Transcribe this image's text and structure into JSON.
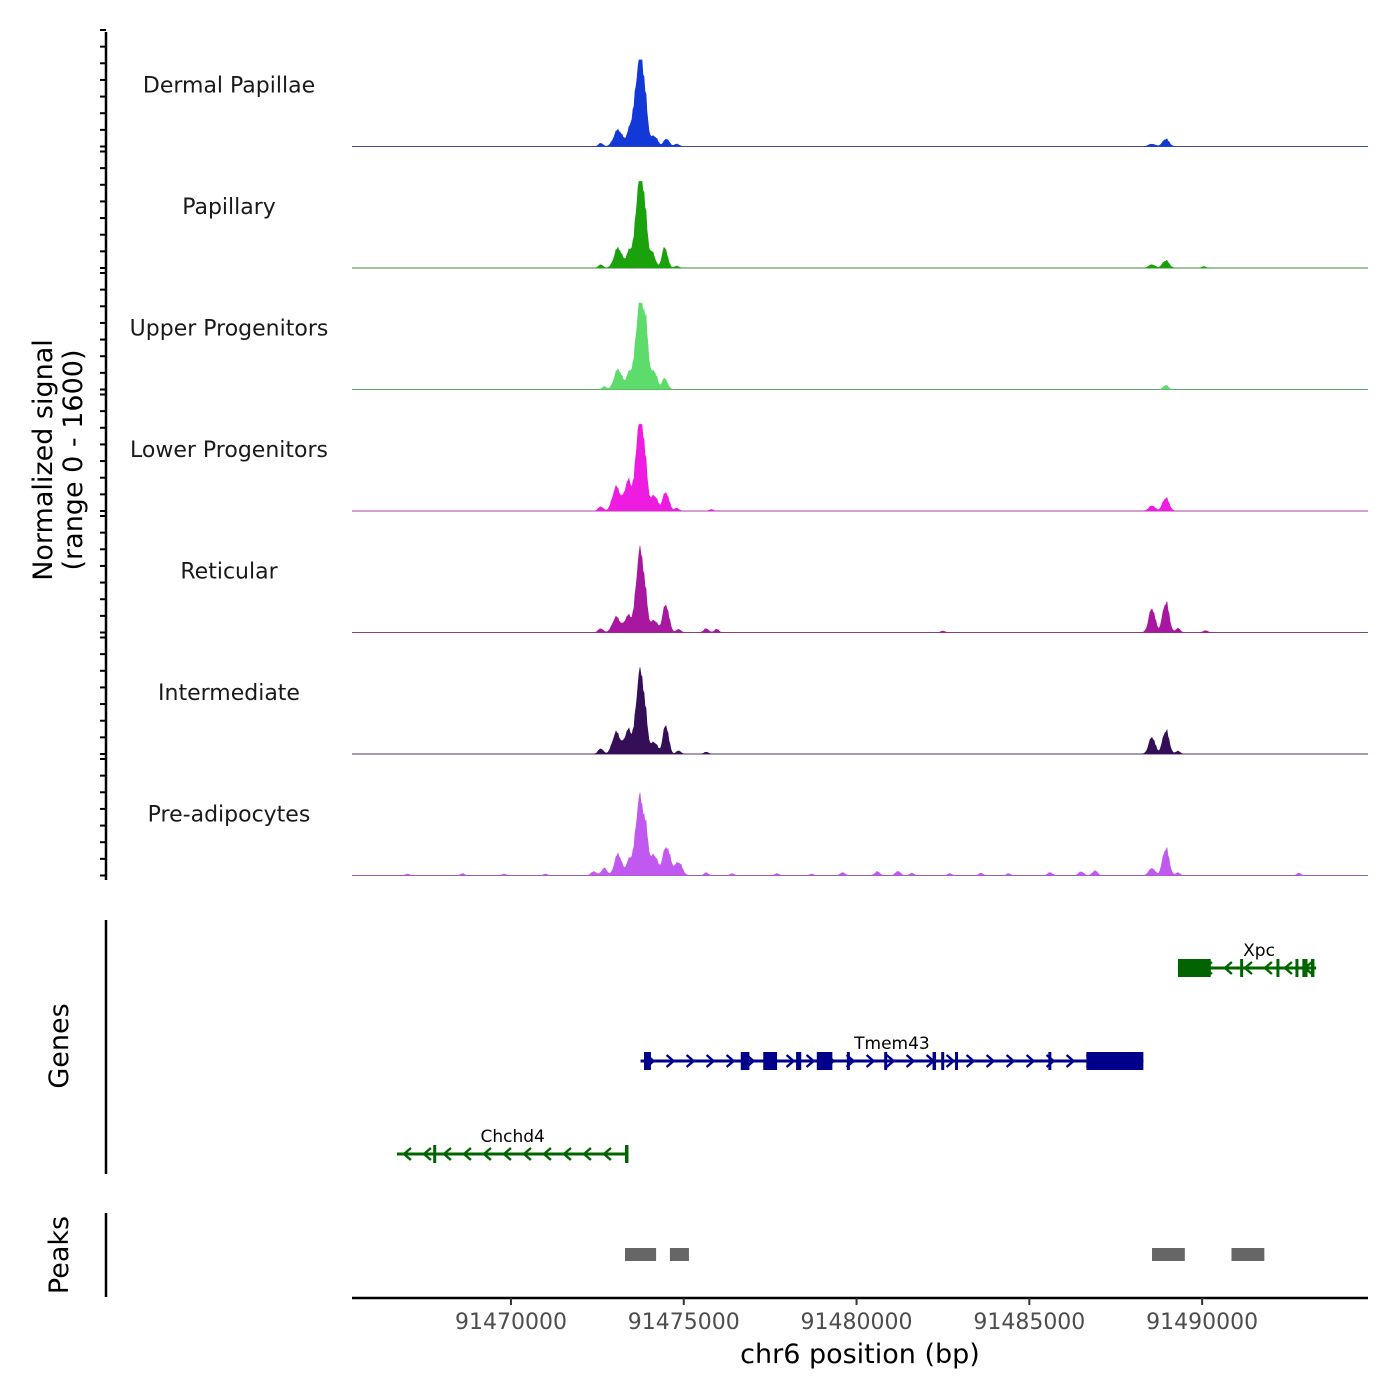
{
  "chart_data": {
    "type": "area",
    "title": "",
    "chromosome": "chr6",
    "xlabel": "chr6 position (bp)",
    "xlim": [
      91465400,
      91494800
    ],
    "x_ticks": [
      91470000,
      91475000,
      91480000,
      91485000,
      91490000
    ],
    "x_tick_labels": [
      "91470000",
      "91475000",
      "91480000",
      "91485000",
      "91490000"
    ],
    "signal_panel_label": "Normalized signal",
    "signal_range_label": "(range 0 - 1600)",
    "ylim": [
      0,
      1600
    ],
    "genes_panel_label": "Genes",
    "peaks_panel_label": "Peaks",
    "series": [
      {
        "name": "Dermal Papillae",
        "color": "#1238d8",
        "peaks": [
          [
            91472600,
            70,
            60
          ],
          [
            91473100,
            350,
            120
          ],
          [
            91473500,
            500,
            110
          ],
          [
            91473700,
            1500,
            90
          ],
          [
            91473850,
            1100,
            90
          ],
          [
            91474150,
            220,
            90
          ],
          [
            91474500,
            160,
            80
          ],
          [
            91474800,
            50,
            70
          ],
          [
            91488550,
            50,
            100
          ],
          [
            91488950,
            160,
            90
          ]
        ]
      },
      {
        "name": "Papillary",
        "color": "#1ba10c",
        "peaks": [
          [
            91472600,
            70,
            60
          ],
          [
            91473100,
            420,
            110
          ],
          [
            91473450,
            380,
            100
          ],
          [
            91473700,
            1600,
            90
          ],
          [
            91473850,
            1200,
            90
          ],
          [
            91474100,
            300,
            80
          ],
          [
            91474450,
            420,
            80
          ],
          [
            91474800,
            40,
            60
          ],
          [
            91488550,
            70,
            90
          ],
          [
            91488950,
            160,
            90
          ],
          [
            91490050,
            30,
            60
          ]
        ]
      },
      {
        "name": "Upper Progenitors",
        "color": "#5ddc6c",
        "peaks": [
          [
            91472700,
            60,
            60
          ],
          [
            91473100,
            420,
            110
          ],
          [
            91473450,
            380,
            100
          ],
          [
            91473700,
            1580,
            90
          ],
          [
            91473880,
            1400,
            90
          ],
          [
            91474150,
            380,
            80
          ],
          [
            91474450,
            230,
            80
          ],
          [
            91488950,
            90,
            70
          ]
        ]
      },
      {
        "name": "Lower Progenitors",
        "color": "#ee1be0",
        "peaks": [
          [
            91472600,
            90,
            70
          ],
          [
            91473050,
            500,
            110
          ],
          [
            91473400,
            630,
            110
          ],
          [
            91473700,
            1650,
            90
          ],
          [
            91473850,
            1100,
            90
          ],
          [
            91474150,
            330,
            90
          ],
          [
            91474480,
            390,
            90
          ],
          [
            91474800,
            60,
            60
          ],
          [
            91475800,
            30,
            60
          ],
          [
            91488550,
            110,
            90
          ],
          [
            91488950,
            280,
            90
          ]
        ]
      },
      {
        "name": "Reticular",
        "color": "#a8179f",
        "peaks": [
          [
            91472600,
            80,
            70
          ],
          [
            91473050,
            320,
            110
          ],
          [
            91473400,
            350,
            110
          ],
          [
            91473700,
            1400,
            90
          ],
          [
            91473850,
            900,
            90
          ],
          [
            91474150,
            260,
            90
          ],
          [
            91474480,
            580,
            90
          ],
          [
            91474850,
            70,
            60
          ],
          [
            91475650,
            80,
            70
          ],
          [
            91475950,
            70,
            60
          ],
          [
            91482500,
            30,
            60
          ],
          [
            91488550,
            500,
            90
          ],
          [
            91488950,
            640,
            90
          ],
          [
            91489300,
            90,
            60
          ],
          [
            91490100,
            40,
            60
          ]
        ]
      },
      {
        "name": "Intermediate",
        "color": "#340e56",
        "peaks": [
          [
            91472600,
            110,
            70
          ],
          [
            91473050,
            450,
            110
          ],
          [
            91473400,
            500,
            110
          ],
          [
            91473700,
            1400,
            90
          ],
          [
            91473850,
            950,
            90
          ],
          [
            91474150,
            250,
            90
          ],
          [
            91474480,
            600,
            80
          ],
          [
            91474850,
            70,
            60
          ],
          [
            91475650,
            40,
            60
          ],
          [
            91488550,
            350,
            90
          ],
          [
            91488950,
            500,
            90
          ],
          [
            91489300,
            60,
            60
          ]
        ]
      },
      {
        "name": "Pre-adipocytes",
        "color": "#c159f0",
        "peaks": [
          [
            91467000,
            30,
            60
          ],
          [
            91468600,
            40,
            60
          ],
          [
            91469800,
            30,
            60
          ],
          [
            91471000,
            30,
            60
          ],
          [
            91472400,
            80,
            80
          ],
          [
            91472700,
            150,
            80
          ],
          [
            91473100,
            450,
            100
          ],
          [
            91473450,
            360,
            100
          ],
          [
            91473700,
            1450,
            90
          ],
          [
            91473880,
            1000,
            90
          ],
          [
            91474150,
            430,
            90
          ],
          [
            91474500,
            600,
            110
          ],
          [
            91474850,
            280,
            100
          ],
          [
            91475650,
            60,
            60
          ],
          [
            91476400,
            40,
            60
          ],
          [
            91477700,
            40,
            60
          ],
          [
            91478700,
            30,
            60
          ],
          [
            91479600,
            60,
            70
          ],
          [
            91480600,
            80,
            70
          ],
          [
            91481200,
            90,
            70
          ],
          [
            91481600,
            50,
            60
          ],
          [
            91482700,
            40,
            60
          ],
          [
            91483600,
            50,
            60
          ],
          [
            91484400,
            40,
            60
          ],
          [
            91485600,
            60,
            70
          ],
          [
            91486500,
            80,
            70
          ],
          [
            91486900,
            100,
            70
          ],
          [
            91488550,
            150,
            90
          ],
          [
            91488950,
            580,
            90
          ],
          [
            91489300,
            60,
            60
          ],
          [
            91492800,
            50,
            60
          ]
        ]
      }
    ],
    "genes": [
      {
        "name": "Xpc",
        "strand": "-",
        "color": "#006400",
        "row": 0,
        "start": 91489300,
        "end": 91493300,
        "exons": [
          [
            91489300,
            91490250
          ],
          [
            91491100,
            91491150
          ],
          [
            91492150,
            91492200
          ],
          [
            91492700,
            91492750
          ],
          [
            91492900,
            91493050
          ],
          [
            91493150,
            91493250
          ]
        ]
      },
      {
        "name": "Tmem43",
        "strand": "+",
        "color": "#00008b",
        "row": 1,
        "start": 91473750,
        "end": 91488300,
        "exons": [
          [
            91473850,
            91474050
          ],
          [
            91476650,
            91476900
          ],
          [
            91477300,
            91477700
          ],
          [
            91478250,
            91478400
          ],
          [
            91478850,
            91479300
          ],
          [
            91479720,
            91479760
          ],
          [
            91480800,
            91480850
          ],
          [
            91482200,
            91482300
          ],
          [
            91482450,
            91482520
          ],
          [
            91482850,
            91482900
          ],
          [
            91485550,
            91485600
          ],
          [
            91486650,
            91488300
          ]
        ]
      },
      {
        "name": "Chchd4",
        "strand": "-",
        "color": "#006400",
        "row": 2,
        "start": 91466700,
        "end": 91473400,
        "exons": [
          [
            91467750,
            91467800
          ],
          [
            91473300,
            91473400
          ]
        ]
      }
    ],
    "peak_regions": [
      [
        91473300,
        91474200
      ],
      [
        91474600,
        91475150
      ],
      [
        91488550,
        91489500
      ],
      [
        91490850,
        91491800
      ]
    ]
  }
}
